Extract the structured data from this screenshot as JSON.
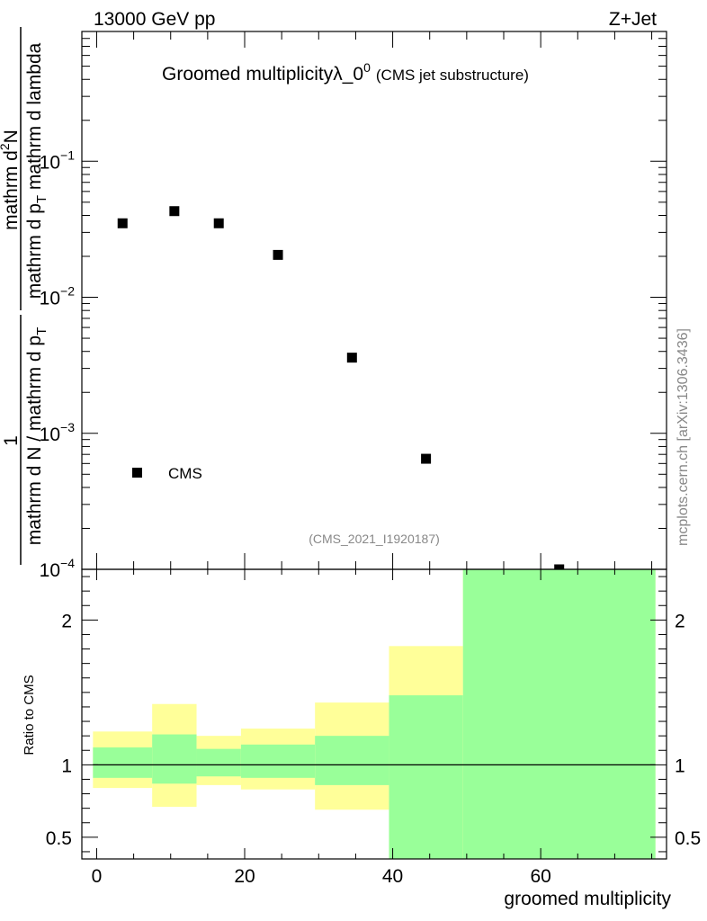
{
  "header": {
    "left": "13000 GeV pp",
    "right": "Z+Jet"
  },
  "title": {
    "main": "Groomed multiplicityλ_0",
    "superscript": "0",
    "sub": "(CMS jet substructure)"
  },
  "analysis_id": "(CMS_2021_I1920187)",
  "side_label": "mcplots.cern.ch [arXiv:1306.3436]",
  "legend": {
    "label": "CMS"
  },
  "chart_data": [
    {
      "type": "scatter",
      "name": "main",
      "yscale": "log",
      "ylim": [
        0.0001,
        0.9
      ],
      "xlim": [
        -2,
        77
      ],
      "ylabel": "1 / (mathrm d N / mathrm d p_T) · mathrm d²N / (mathrm d p_T mathrm d lambda)",
      "ylabel_parts": {
        "prefix_num": "1",
        "prefix_den": "mathrm d N / mathrm d p",
        "prefix_den_sub": "T",
        "num": "mathrm d",
        "num_sup": "2",
        "num_tail": "N",
        "den": "mathrm d p",
        "den_sub": "T",
        "den_tail": " mathrm d lambda"
      },
      "yticks": [
        {
          "value": 0.1,
          "mant": "10",
          "exp": "−1"
        },
        {
          "value": 0.01,
          "mant": "10",
          "exp": "−2"
        },
        {
          "value": 0.001,
          "mant": "10",
          "exp": "−3"
        },
        {
          "value": 0.0001,
          "mant": "10",
          "exp": "−4"
        }
      ],
      "points": [
        {
          "x": 3.5,
          "y": 0.035
        },
        {
          "x": 10.5,
          "y": 0.043
        },
        {
          "x": 16.5,
          "y": 0.035
        },
        {
          "x": 24.5,
          "y": 0.0205
        },
        {
          "x": 34.5,
          "y": 0.0036
        },
        {
          "x": 44.5,
          "y": 0.00065
        },
        {
          "x": 62.5,
          "y": 0.0001
        }
      ]
    },
    {
      "type": "ratio-bands",
      "name": "ratio",
      "ylim": [
        0.35,
        2.35
      ],
      "xlim": [
        -2,
        77
      ],
      "xlabel": "groomed multiplicity",
      "ylabel": "Ratio to CMS",
      "xticks": [
        {
          "value": 0,
          "label": "0"
        },
        {
          "value": 20,
          "label": "20"
        },
        {
          "value": 40,
          "label": "40"
        },
        {
          "value": 60,
          "label": "60"
        }
      ],
      "yticks": [
        {
          "value": 0.5,
          "label": "0.5"
        },
        {
          "value": 1,
          "label": "1"
        },
        {
          "value": 2,
          "label": "2"
        }
      ],
      "reference": 1,
      "bins": [
        {
          "x0": -0.5,
          "x1": 7.5,
          "yellow": [
            0.84,
            1.23
          ],
          "green": [
            0.91,
            1.12
          ]
        },
        {
          "x0": 7.5,
          "x1": 13.5,
          "yellow": [
            0.71,
            1.42
          ],
          "green": [
            0.87,
            1.21
          ]
        },
        {
          "x0": 13.5,
          "x1": 19.5,
          "yellow": [
            0.86,
            1.2
          ],
          "green": [
            0.92,
            1.11
          ]
        },
        {
          "x0": 19.5,
          "x1": 29.5,
          "yellow": [
            0.83,
            1.25
          ],
          "green": [
            0.91,
            1.14
          ]
        },
        {
          "x0": 29.5,
          "x1": 39.5,
          "yellow": [
            0.69,
            1.43
          ],
          "green": [
            0.86,
            1.2
          ]
        },
        {
          "x0": 39.5,
          "x1": 49.5,
          "yellow": [
            0.35,
            1.82
          ],
          "green": [
            0.35,
            1.48
          ]
        },
        {
          "x0": 49.5,
          "x1": 75.5,
          "yellow": [
            0.35,
            2.35
          ],
          "green": [
            0.35,
            2.35
          ]
        }
      ]
    }
  ]
}
